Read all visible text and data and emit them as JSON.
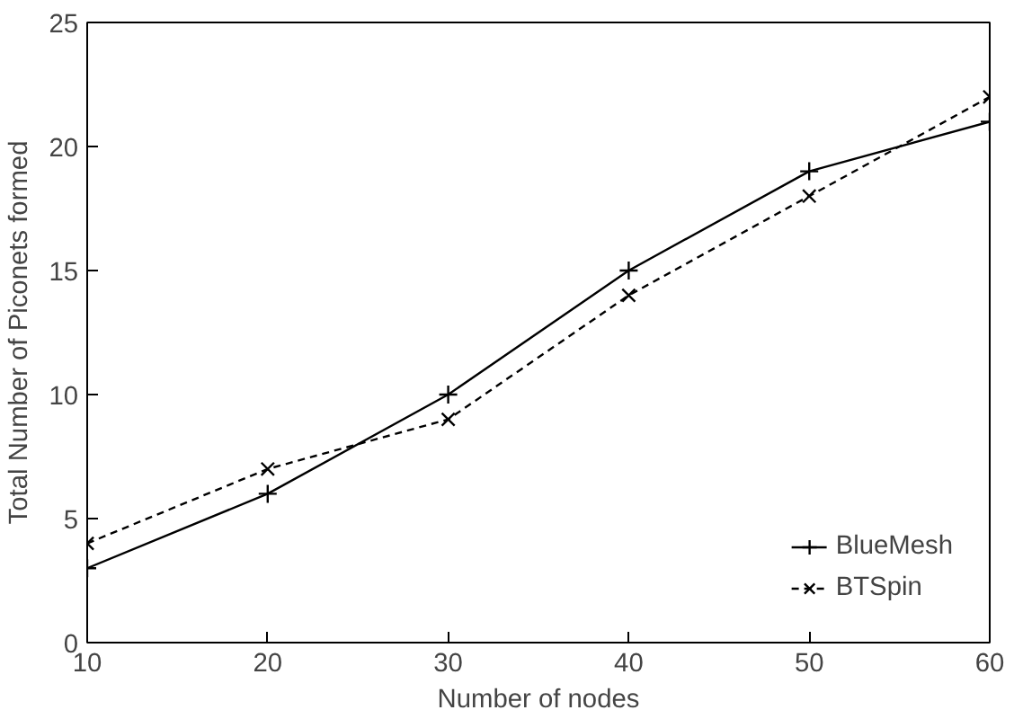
{
  "chart_data": {
    "type": "line",
    "xlabel": "Number of nodes",
    "ylabel": "Total Number of Piconets formed",
    "x": [
      10,
      20,
      30,
      40,
      50,
      60
    ],
    "series": [
      {
        "name": "BlueMesh",
        "color": "#000000",
        "values": [
          3,
          6,
          10,
          15,
          19,
          21
        ],
        "marker": "cross",
        "line_style": "solid"
      },
      {
        "name": "BTSpin",
        "color": "#000000",
        "values": [
          4,
          7,
          9,
          14,
          18,
          22
        ],
        "marker": "x",
        "line_style": "dashed"
      }
    ],
    "xlim": [
      10,
      60
    ],
    "xticks": [
      10,
      20,
      30,
      40,
      50,
      60
    ],
    "ylim": [
      0,
      25
    ],
    "yticks": [
      0,
      5,
      10,
      15,
      20,
      25
    ],
    "grid": false,
    "legend": "bottom right"
  }
}
